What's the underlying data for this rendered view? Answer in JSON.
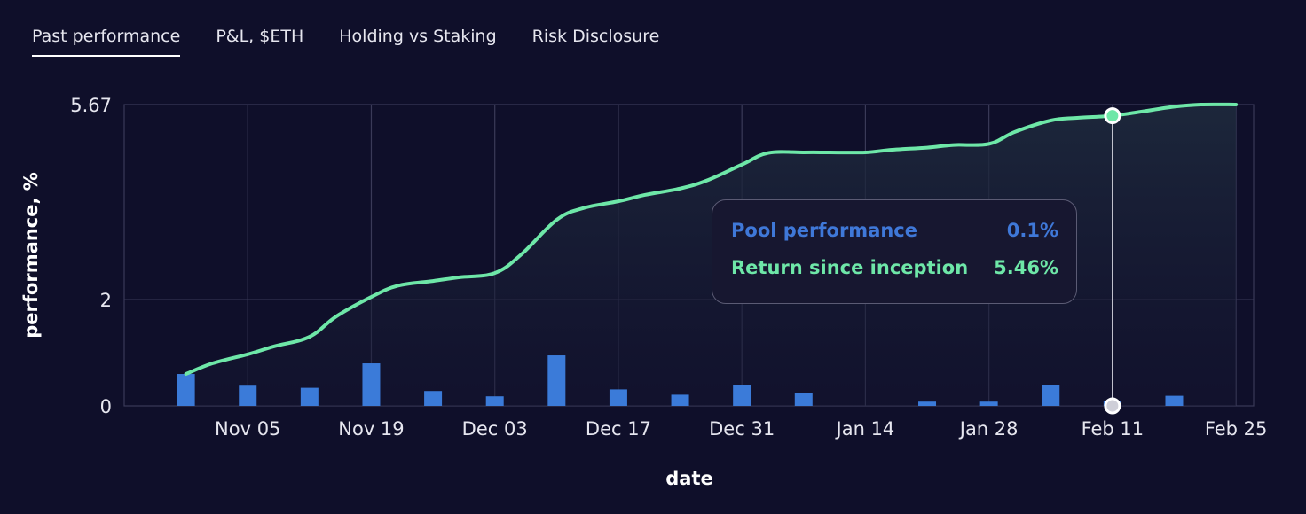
{
  "tabs": [
    {
      "label": "Past performance",
      "active": true
    },
    {
      "label": "P&L, $ETH",
      "active": false
    },
    {
      "label": "Holding vs Staking",
      "active": false
    },
    {
      "label": "Risk Disclosure",
      "active": false
    }
  ],
  "tooltip": {
    "pool_label": "Pool performance",
    "pool_value": "0.1%",
    "return_label": "Return since inception",
    "return_value": "5.46%"
  },
  "colors": {
    "background": "#0f0f2a",
    "grid": "#3a3a58",
    "line": "#6ee7a8",
    "bar": "#3b7bd9",
    "marker_bottom": "#cfcfd8"
  },
  "chart_data": {
    "type": "line",
    "xlabel": "date",
    "ylabel": "performance, %",
    "x_ticks": [
      "Nov 05",
      "Nov 19",
      "Dec 03",
      "Dec 17",
      "Dec 31",
      "Jan 14",
      "Jan 28",
      "Feb 11",
      "Feb 25"
    ],
    "y_ticks": [
      "5.67",
      "2",
      "0"
    ],
    "xlim": [
      "2023-10-22",
      "2024-02-27"
    ],
    "ylim": [
      0,
      5.67
    ],
    "grid": true,
    "highlight_date": "2024-02-11",
    "series": [
      {
        "name": "Return since inception",
        "kind": "line",
        "x": [
          "2023-10-29",
          "2023-11-01",
          "2023-11-05",
          "2023-11-08",
          "2023-11-12",
          "2023-11-15",
          "2023-11-19",
          "2023-11-22",
          "2023-11-26",
          "2023-11-29",
          "2023-12-03",
          "2023-12-06",
          "2023-12-10",
          "2023-12-13",
          "2023-12-17",
          "2023-12-20",
          "2023-12-24",
          "2023-12-27",
          "2023-12-31",
          "2024-01-03",
          "2024-01-07",
          "2024-01-10",
          "2024-01-14",
          "2024-01-17",
          "2024-01-21",
          "2024-01-24",
          "2024-01-28",
          "2024-01-31",
          "2024-02-04",
          "2024-02-07",
          "2024-02-11",
          "2024-02-14",
          "2024-02-18",
          "2024-02-21",
          "2024-02-25"
        ],
        "values": [
          0.6,
          0.8,
          0.97,
          1.12,
          1.3,
          1.68,
          2.05,
          2.26,
          2.35,
          2.42,
          2.5,
          2.85,
          3.5,
          3.72,
          3.85,
          3.97,
          4.09,
          4.24,
          4.54,
          4.76,
          4.77,
          4.77,
          4.77,
          4.82,
          4.86,
          4.91,
          4.93,
          5.16,
          5.37,
          5.42,
          5.46,
          5.53,
          5.63,
          5.67,
          5.67
        ]
      },
      {
        "name": "Pool performance",
        "kind": "bar",
        "x": [
          "2023-10-29",
          "2023-11-01",
          "2023-11-05",
          "2023-11-08",
          "2023-11-12",
          "2023-11-15",
          "2023-11-19",
          "2023-11-22",
          "2023-11-26",
          "2023-11-29",
          "2023-12-03",
          "2023-12-06",
          "2023-12-10",
          "2023-12-13",
          "2023-12-17",
          "2023-12-20",
          "2023-12-24",
          "2023-12-27",
          "2023-12-31",
          "2024-01-03",
          "2024-01-07",
          "2024-01-10",
          "2024-01-14",
          "2024-01-17",
          "2024-01-21",
          "2024-01-24",
          "2024-01-28",
          "2024-01-31",
          "2024-02-04",
          "2024-02-07",
          "2024-02-11",
          "2024-02-14",
          "2024-02-18",
          "2024-02-21",
          "2024-02-25"
        ],
        "values": [
          0.6,
          0,
          0.38,
          0,
          0.34,
          0,
          0.8,
          0,
          0.28,
          0,
          0.18,
          0,
          0.95,
          0,
          0.31,
          0,
          0.21,
          0,
          0.39,
          0,
          0.25,
          0,
          0,
          0,
          0.08,
          0,
          0.08,
          0,
          0.39,
          0,
          0.1,
          0,
          0.19,
          0,
          0
        ]
      }
    ]
  }
}
